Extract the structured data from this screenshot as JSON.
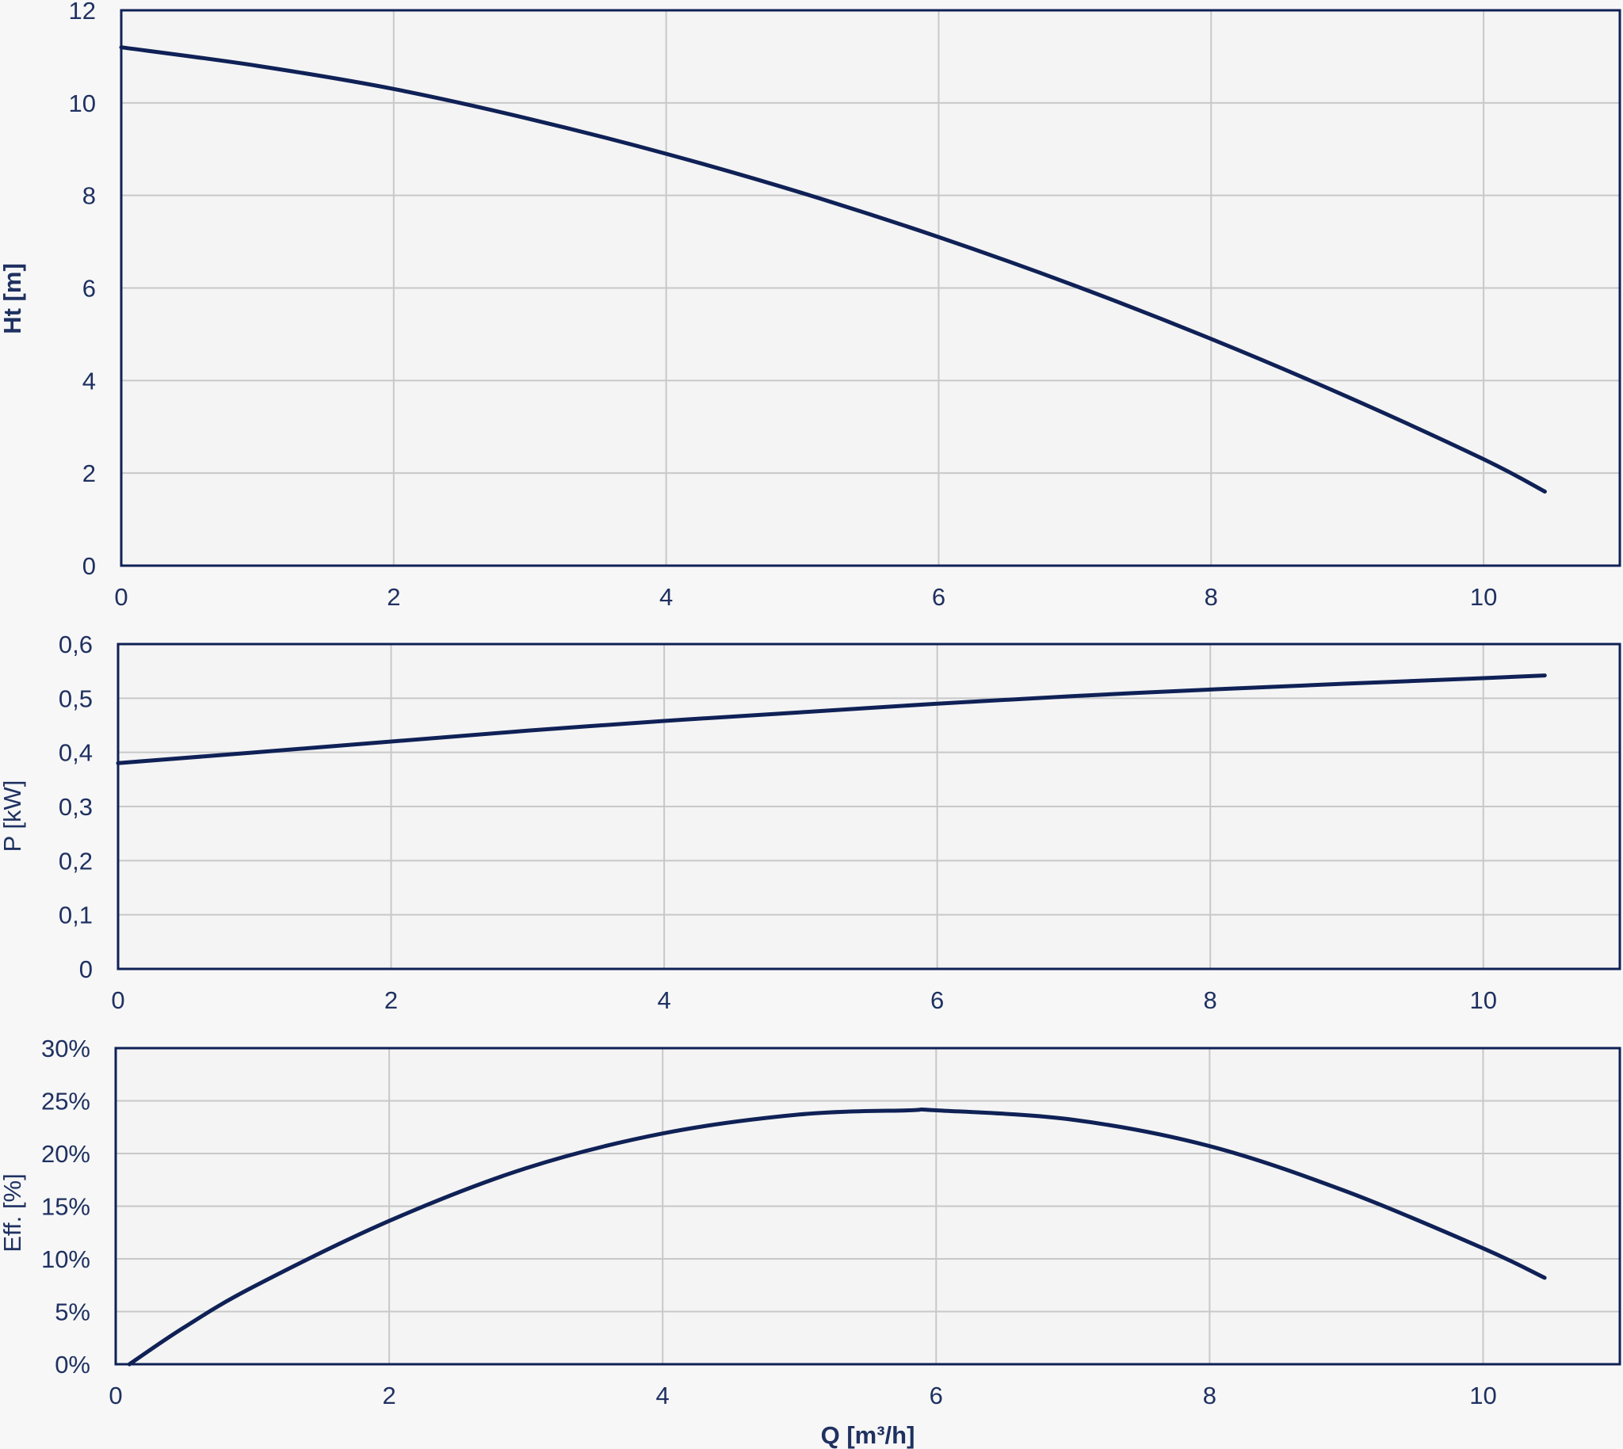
{
  "colors": {
    "line": "#0f2156",
    "text": "#1f3161",
    "frame": "#0f2156",
    "grid": "#c8c8c8"
  },
  "chart_data": [
    {
      "type": "line",
      "id": "head",
      "xlabel": "",
      "ylabel": "Ht [m]",
      "ylabel_bold": true,
      "xlim": [
        0,
        11
      ],
      "ylim": [
        0,
        12
      ],
      "xticks": [
        0,
        2,
        4,
        6,
        8,
        10
      ],
      "xtick_labels": [
        "0",
        "2",
        "4",
        "6",
        "8",
        "10"
      ],
      "yticks": [
        0,
        2,
        4,
        6,
        8,
        10,
        12
      ],
      "ytick_labels": [
        "0",
        "2",
        "4",
        "6",
        "8",
        "10",
        "12"
      ],
      "series": [
        {
          "x": [
            0,
            1,
            2,
            3,
            4,
            5,
            6,
            7,
            8,
            9,
            10,
            10.45
          ],
          "y": [
            11.2,
            10.8,
            10.3,
            9.65,
            8.9,
            8.05,
            7.1,
            6.05,
            4.9,
            3.65,
            2.3,
            1.6
          ]
        }
      ]
    },
    {
      "type": "line",
      "id": "power",
      "xlabel": "",
      "ylabel": "P [kW]",
      "ylabel_bold": false,
      "xlim": [
        0,
        11
      ],
      "ylim": [
        0,
        0.6
      ],
      "xticks": [
        0,
        2,
        4,
        6,
        8,
        10
      ],
      "xtick_labels": [
        "0",
        "2",
        "4",
        "6",
        "8",
        "10"
      ],
      "yticks": [
        0,
        0.1,
        0.2,
        0.3,
        0.4,
        0.5,
        0.6
      ],
      "ytick_labels": [
        "0",
        "0,1",
        "0,2",
        "0,3",
        "0,4",
        "0,5",
        "0,6"
      ],
      "series": [
        {
          "x": [
            0,
            1,
            2,
            3,
            4,
            5,
            6,
            7,
            8,
            9,
            10,
            10.45
          ],
          "y": [
            0.38,
            0.4,
            0.42,
            0.44,
            0.458,
            0.474,
            0.49,
            0.504,
            0.516,
            0.527,
            0.537,
            0.542
          ]
        }
      ]
    },
    {
      "type": "line",
      "id": "efficiency",
      "xlabel": "Q [m³/h]",
      "ylabel": "Eff. [%]",
      "ylabel_bold": false,
      "xlim": [
        0,
        11
      ],
      "ylim": [
        0,
        30
      ],
      "xticks": [
        0,
        2,
        4,
        6,
        8,
        10
      ],
      "xtick_labels": [
        "0",
        "2",
        "4",
        "6",
        "8",
        "10"
      ],
      "yticks": [
        0,
        5,
        10,
        15,
        20,
        25,
        30
      ],
      "ytick_labels": [
        "0%",
        "5%",
        "10%",
        "15%",
        "20%",
        "25%",
        "30%"
      ],
      "series": [
        {
          "x": [
            0.1,
            0.5,
            1,
            2,
            3,
            4,
            5,
            5.8,
            6,
            7,
            8,
            9,
            10,
            10.45
          ],
          "y": [
            0,
            3.5,
            7.3,
            13.6,
            18.6,
            21.9,
            23.7,
            24.1,
            24.1,
            23.2,
            20.7,
            16.4,
            11.0,
            8.2
          ]
        }
      ]
    }
  ]
}
